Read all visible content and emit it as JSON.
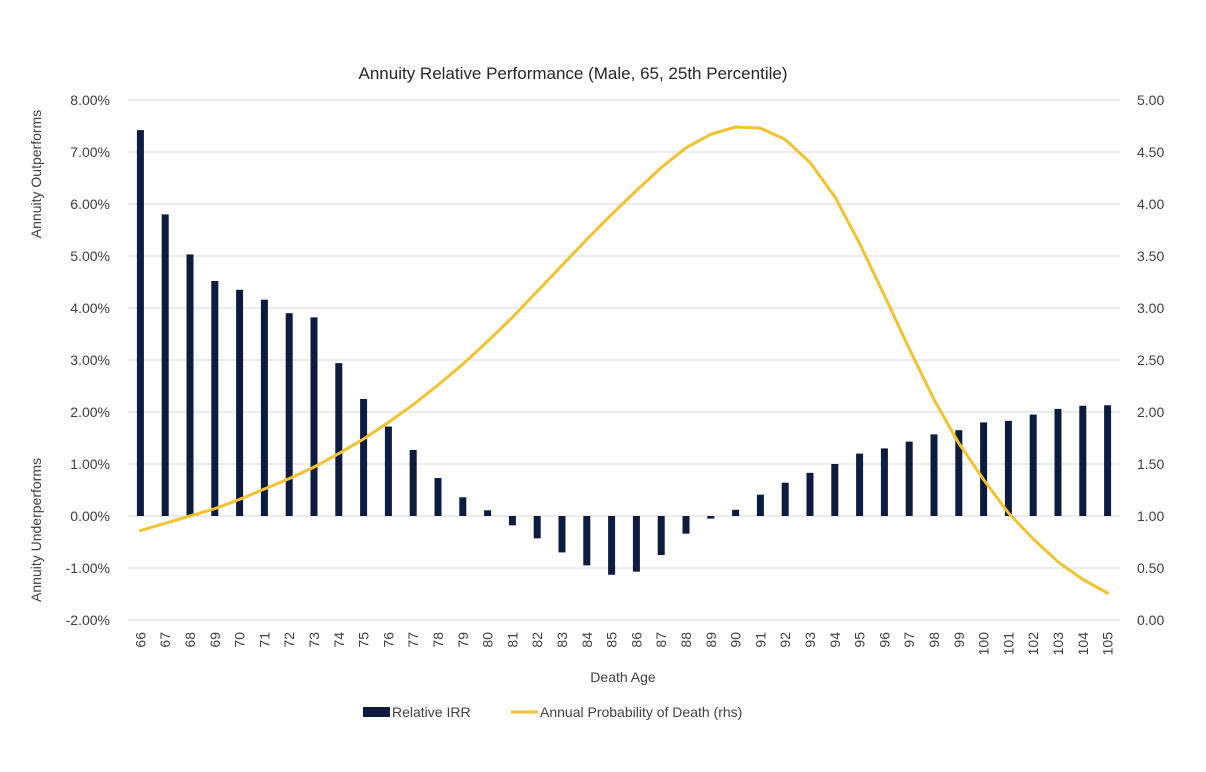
{
  "chart_data": {
    "type": "bar",
    "title": "Annuity Relative Performance (Male, 65, 25th Percentile)",
    "xlabel": "Death Age",
    "ylabel_top": "Annuity Outperforms",
    "ylabel_bottom": "Annuity Underperforms",
    "categories": [
      "66",
      "67",
      "68",
      "69",
      "70",
      "71",
      "72",
      "73",
      "74",
      "75",
      "76",
      "77",
      "78",
      "79",
      "80",
      "81",
      "82",
      "83",
      "84",
      "85",
      "86",
      "87",
      "88",
      "89",
      "90",
      "91",
      "92",
      "93",
      "94",
      "95",
      "96",
      "97",
      "98",
      "99",
      "100",
      "101",
      "102",
      "103",
      "104",
      "105"
    ],
    "ylim_left": [
      -2.0,
      8.0
    ],
    "ylim_right": [
      0.0,
      5.0
    ],
    "yticks_left": [
      "-2.00%",
      "-1.00%",
      "0.00%",
      "1.00%",
      "2.00%",
      "3.00%",
      "4.00%",
      "5.00%",
      "6.00%",
      "7.00%",
      "8.00%"
    ],
    "yticks_right": [
      "0.00",
      "0.50",
      "1.00",
      "1.50",
      "2.00",
      "2.50",
      "3.00",
      "3.50",
      "4.00",
      "4.50",
      "5.00"
    ],
    "grid": true,
    "legend_position": "bottom",
    "series": [
      {
        "name": "Relative IRR",
        "type": "bar",
        "axis": "left",
        "color": "#0d1b3e",
        "values": [
          7.42,
          5.8,
          5.03,
          4.52,
          4.35,
          4.16,
          3.9,
          3.82,
          2.94,
          2.25,
          1.72,
          1.27,
          0.73,
          0.36,
          0.11,
          -0.18,
          -0.43,
          -0.7,
          -0.95,
          -1.13,
          -1.07,
          -0.75,
          -0.34,
          -0.05,
          0.12,
          0.41,
          0.64,
          0.83,
          1.0,
          1.2,
          1.3,
          1.43,
          1.57,
          1.65,
          1.8,
          1.83,
          1.95,
          2.06,
          2.12,
          2.13
        ]
      },
      {
        "name": "Annual Probability of Death (rhs)",
        "type": "line",
        "axis": "right",
        "color": "#f2c230",
        "values": [
          0.86,
          0.93,
          1.0,
          1.07,
          1.16,
          1.26,
          1.36,
          1.47,
          1.6,
          1.74,
          1.9,
          2.07,
          2.26,
          2.46,
          2.68,
          2.91,
          3.16,
          3.41,
          3.66,
          3.9,
          4.13,
          4.35,
          4.54,
          4.67,
          4.74,
          4.73,
          4.62,
          4.4,
          4.07,
          3.62,
          3.12,
          2.61,
          2.12,
          1.7,
          1.35,
          1.03,
          0.78,
          0.56,
          0.39,
          0.26
        ]
      }
    ]
  }
}
